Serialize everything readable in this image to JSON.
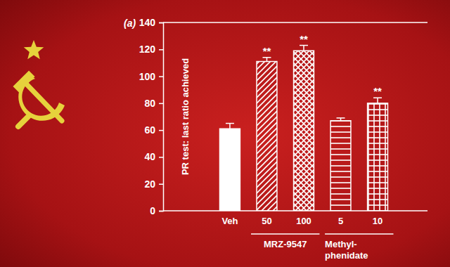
{
  "chart_data": {
    "type": "bar",
    "title": "(a)",
    "y_label": "PR test: last ratio achieved",
    "categories": [
      "Veh",
      "50",
      "100",
      "5",
      "10"
    ],
    "groups": [
      null,
      "MRZ-9547",
      "MRZ-9547",
      "Methyl-\nphenidate",
      "Methyl-\nphenidate"
    ],
    "values": [
      61,
      111,
      119,
      67,
      80
    ],
    "errors": [
      4,
      3,
      4,
      2,
      4
    ],
    "significance": [
      null,
      "**",
      "**",
      null,
      "**"
    ],
    "color": "#ffffff",
    "ylim": [
      0,
      140
    ],
    "yticks": [
      0,
      20,
      40,
      60,
      80,
      100,
      120,
      140
    ],
    "grid": false
  }
}
